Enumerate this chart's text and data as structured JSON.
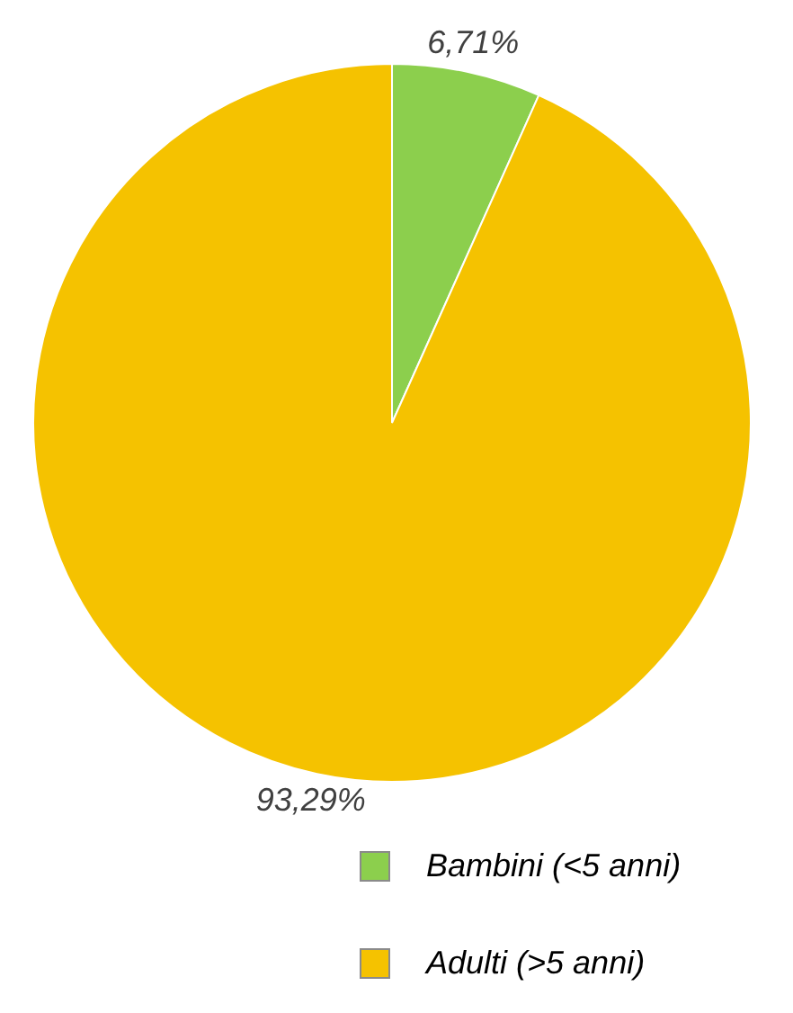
{
  "chart_data": {
    "type": "pie",
    "categories": [
      "Bambini (<5 anni)",
      "Adulti (>5 anni)"
    ],
    "values": [
      6.71,
      93.29
    ],
    "colors": [
      "#8ccf4d",
      "#f5c200"
    ],
    "value_labels": [
      "6,71%",
      "93,29%"
    ],
    "legend": "bottom right"
  }
}
